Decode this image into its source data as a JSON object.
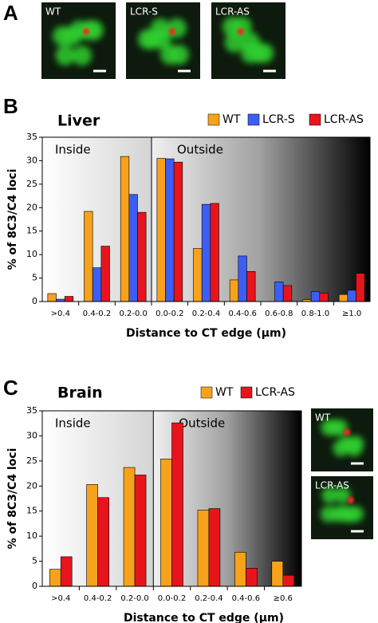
{
  "panel_labels": [
    "A",
    "B",
    "C"
  ],
  "images": {
    "panel_a": [
      "WT",
      "LCR-S",
      "LCR-AS"
    ],
    "panel_c": [
      "WT",
      "LCR-AS"
    ]
  },
  "chart_data": [
    {
      "type": "bar",
      "title": "Liver",
      "region_labels": [
        "Inside",
        "Outside"
      ],
      "xlabel": "Distance to CT edge (µm)",
      "ylabel": "% of 8C3/C4 loci",
      "categories": [
        ">0.4",
        "0.4-0.2",
        "0.2-0.0",
        "0.0-0.2",
        "0.2-0.4",
        "0.4-0.6",
        "0.6-0.8",
        "0.8-1.0",
        "≥1.0"
      ],
      "series": [
        {
          "name": "WT",
          "color": "#f7a21b",
          "values": [
            1.7,
            19.2,
            30.9,
            30.5,
            11.3,
            4.6,
            0,
            0.4,
            1.5
          ]
        },
        {
          "name": "LCR-S",
          "color": "#3d5ef5",
          "values": [
            0.5,
            7.2,
            22.8,
            30.4,
            20.7,
            9.7,
            4.2,
            2.1,
            2.4
          ]
        },
        {
          "name": "LCR-AS",
          "color": "#e8141c",
          "values": [
            1.1,
            11.8,
            19.0,
            29.7,
            20.9,
            6.4,
            3.4,
            1.8,
            6.0
          ]
        }
      ],
      "ylim": [
        0,
        35
      ],
      "yticks": [
        0,
        5,
        10,
        15,
        20,
        25,
        30,
        35
      ]
    },
    {
      "type": "bar",
      "title": "Brain",
      "region_labels": [
        "Inside",
        "Outside"
      ],
      "xlabel": "Distance to CT edge (µm)",
      "ylabel": "% of 8C3/C4 loci",
      "categories": [
        ">0.4",
        "0.4-0.2",
        "0.2-0.0",
        "0.0-0.2",
        "0.2-0.4",
        "0.4-0.6",
        "≥0.6"
      ],
      "series": [
        {
          "name": "WT",
          "color": "#f7a21b",
          "values": [
            3.4,
            20.3,
            23.7,
            25.4,
            15.2,
            6.8,
            5.0
          ]
        },
        {
          "name": "LCR-AS",
          "color": "#e8141c",
          "values": [
            5.9,
            17.7,
            22.2,
            32.6,
            15.5,
            3.6,
            2.2
          ]
        }
      ],
      "ylim": [
        0,
        35
      ],
      "yticks": [
        0,
        5,
        10,
        15,
        20,
        25,
        30,
        35
      ]
    }
  ]
}
